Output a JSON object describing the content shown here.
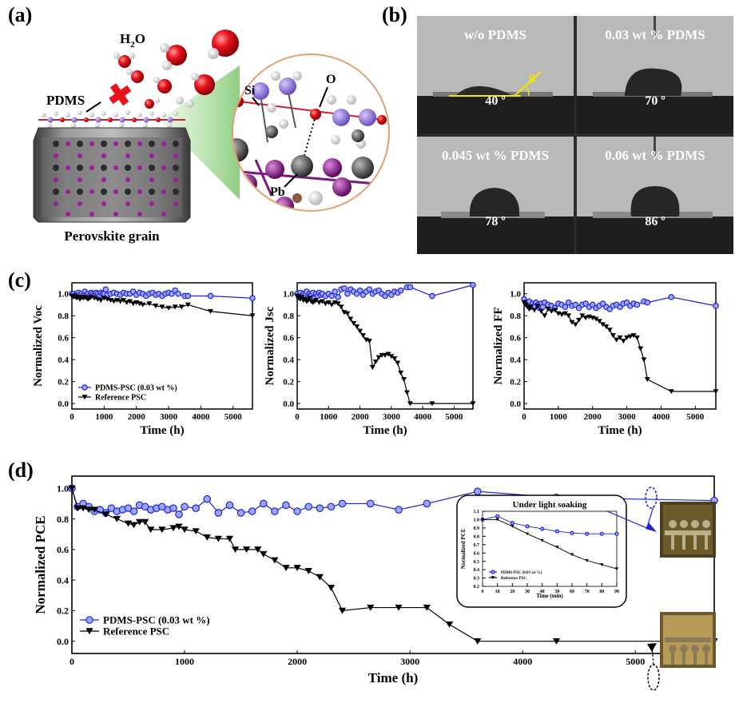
{
  "panel_labels": {
    "a": "(a)",
    "b": "(b)",
    "c": "(c)",
    "d": "(d)"
  },
  "panel_a": {
    "water_label": "H",
    "water_sub": "2",
    "water_suffix": "O",
    "pdms_label": "PDMS",
    "grain_label": "Perovskite grain",
    "si_label": "Si",
    "o_label": "O",
    "pb_label": "Pb",
    "colors": {
      "water_red": "#e8141c",
      "pdms_purple": "#9a7fd8",
      "pb_purple": "#8a1f8a",
      "grey_atom": "#5a5a5a",
      "cross_red": "#e8141c"
    }
  },
  "panel_b": {
    "cells": [
      {
        "label": "w/o PDMS",
        "angle": "40 º",
        "theta": "θ"
      },
      {
        "label": "0.03 wt % PDMS",
        "angle": "70 º"
      },
      {
        "label": "0.045 wt % PDMS",
        "angle": "78 º"
      },
      {
        "label": "0.06 wt % PDMS",
        "angle": "86 º"
      }
    ]
  },
  "chart_data": [
    {
      "id": "c-voc",
      "type": "line",
      "ylabel": "Normalized Voc",
      "xlabel": "Time (h)",
      "xlim": [
        0,
        5600
      ],
      "ylim": [
        -0.05,
        1.1
      ],
      "xticks": [
        0,
        1000,
        2000,
        3000,
        4000,
        5000
      ],
      "yticks": [
        0.0,
        0.2,
        0.4,
        0.6,
        0.8,
        1.0
      ],
      "xticklabels": [
        "0",
        "1000",
        "2000",
        "3000",
        "4000",
        "5000"
      ],
      "yticklabels": [
        "0.0",
        "0.2",
        "0.4",
        "0.6",
        "0.8",
        "1.0"
      ],
      "legend": {
        "placement": "bottom-left",
        "entries": [
          "PDMS-PSC (0.03 wt %)",
          "Reference PSC"
        ]
      },
      "series": [
        {
          "name": "PDMS-PSC (0.03 wt %)",
          "color": "#1f1fe0",
          "marker": "circle",
          "x": [
            0,
            50,
            100,
            150,
            200,
            250,
            300,
            350,
            400,
            450,
            500,
            550,
            600,
            650,
            700,
            750,
            800,
            850,
            900,
            950,
            1000,
            1050,
            1100,
            1200,
            1300,
            1400,
            1500,
            1600,
            1700,
            1800,
            1900,
            2000,
            2100,
            2200,
            2300,
            2400,
            2500,
            2600,
            2700,
            2800,
            2900,
            3000,
            3100,
            3200,
            3300,
            3500,
            3600,
            4300,
            5600
          ],
          "y": [
            1.0,
            1.0,
            0.98,
            1.0,
            1.01,
            0.99,
            1.0,
            0.98,
            1.02,
            0.99,
            1.0,
            0.98,
            1.01,
            1.0,
            0.99,
            1.01,
            1.0,
            0.98,
            1.01,
            1.0,
            1.0,
            1.04,
            0.99,
            1.0,
            1.01,
            1.0,
            0.99,
            1.01,
            1.0,
            1.0,
            1.02,
            0.99,
            1.01,
            1.0,
            0.98,
            1.0,
            1.01,
            0.99,
            1.0,
            0.98,
            1.0,
            1.01,
            1.0,
            1.03,
            1.0,
            0.98,
            0.98,
            0.98,
            0.96
          ]
        },
        {
          "name": "Reference PSC",
          "color": "#000000",
          "marker": "triangle-down",
          "x": [
            0,
            50,
            100,
            150,
            200,
            250,
            300,
            350,
            400,
            450,
            500,
            550,
            600,
            700,
            800,
            900,
            1000,
            1100,
            1200,
            1300,
            1400,
            1500,
            1600,
            1700,
            1800,
            1900,
            2000,
            2100,
            2200,
            2400,
            2600,
            2800,
            3000,
            3200,
            3400,
            3600,
            4300,
            5600
          ],
          "y": [
            0.98,
            0.97,
            0.98,
            0.96,
            0.97,
            0.95,
            0.97,
            0.96,
            0.97,
            0.96,
            0.95,
            0.96,
            0.97,
            0.96,
            0.95,
            0.94,
            0.96,
            0.95,
            0.94,
            0.93,
            0.94,
            0.93,
            0.94,
            0.92,
            0.93,
            0.91,
            0.92,
            0.91,
            0.9,
            0.91,
            0.89,
            0.88,
            0.87,
            0.88,
            0.88,
            0.9,
            0.84,
            0.8
          ]
        }
      ]
    },
    {
      "id": "c-jsc",
      "type": "line",
      "ylabel": "Normalized Jsc",
      "xlabel": "Time (h)",
      "xlim": [
        0,
        5600
      ],
      "ylim": [
        -0.05,
        1.1
      ],
      "xticks": [
        0,
        1000,
        2000,
        3000,
        4000,
        5000
      ],
      "yticks": [
        0.0,
        0.2,
        0.4,
        0.6,
        0.8,
        1.0
      ],
      "xticklabels": [
        "0",
        "1000",
        "2000",
        "3000",
        "4000",
        "5000"
      ],
      "yticklabels": [
        "0.0",
        "0.2",
        "0.4",
        "0.6",
        "0.8",
        "1.0"
      ],
      "series": [
        {
          "name": "PDMS-PSC (0.03 wt %)",
          "color": "#1f1fe0",
          "marker": "circle",
          "x": [
            0,
            50,
            100,
            150,
            200,
            250,
            300,
            350,
            400,
            450,
            500,
            550,
            600,
            650,
            700,
            750,
            800,
            900,
            1000,
            1100,
            1200,
            1300,
            1400,
            1500,
            1600,
            1700,
            1800,
            1900,
            2000,
            2100,
            2200,
            2300,
            2400,
            2500,
            2600,
            2700,
            2800,
            2900,
            3000,
            3100,
            3200,
            3300,
            3500,
            3600,
            4300,
            5600
          ],
          "y": [
            1.0,
            0.97,
            1.01,
            0.98,
            1.0,
            0.99,
            1.02,
            0.97,
            1.0,
            0.99,
            1.01,
            0.96,
            1.0,
            0.98,
            1.01,
            0.99,
            1.0,
            0.98,
            1.0,
            0.98,
            1.02,
            0.97,
            1.04,
            1.05,
            1.0,
            1.04,
            1.02,
            1.0,
            1.03,
            0.99,
            1.02,
            1.04,
            1.0,
            1.02,
            1.03,
            1.0,
            0.98,
            1.01,
            0.99,
            1.02,
            1.01,
            1.03,
            1.06,
            1.06,
            0.98,
            1.08
          ]
        },
        {
          "name": "Reference PSC",
          "color": "#000000",
          "marker": "triangle-down",
          "x": [
            0,
            50,
            100,
            150,
            200,
            250,
            300,
            350,
            400,
            450,
            500,
            550,
            600,
            700,
            800,
            900,
            1000,
            1100,
            1200,
            1300,
            1400,
            1500,
            1600,
            1700,
            1800,
            1900,
            2000,
            2100,
            2200,
            2300,
            2400,
            2500,
            2600,
            2700,
            2800,
            2900,
            3000,
            3100,
            3200,
            3300,
            3400,
            3500,
            3600,
            4300,
            5600
          ],
          "y": [
            0.98,
            0.96,
            0.95,
            0.97,
            0.94,
            0.95,
            0.93,
            0.94,
            0.96,
            0.93,
            0.92,
            0.93,
            0.94,
            0.92,
            0.93,
            0.91,
            0.92,
            0.9,
            0.92,
            0.91,
            0.88,
            0.83,
            0.82,
            0.77,
            0.73,
            0.7,
            0.66,
            0.62,
            0.58,
            0.57,
            0.33,
            0.38,
            0.42,
            0.44,
            0.44,
            0.45,
            0.43,
            0.41,
            0.37,
            0.28,
            0.22,
            0.1,
            0.0,
            0.0,
            0.0
          ]
        }
      ]
    },
    {
      "id": "c-ff",
      "type": "line",
      "ylabel": "Normalized FF",
      "xlabel": "Time (h)",
      "xlim": [
        0,
        5600
      ],
      "ylim": [
        -0.05,
        1.1
      ],
      "xticks": [
        0,
        1000,
        2000,
        3000,
        4000,
        5000
      ],
      "yticks": [
        0.0,
        0.2,
        0.4,
        0.6,
        0.8,
        1.0
      ],
      "xticklabels": [
        "0",
        "1000",
        "2000",
        "3000",
        "4000",
        "5000"
      ],
      "yticklabels": [
        "0.0",
        "0.2",
        "0.4",
        "0.6",
        "0.8",
        "1.0"
      ],
      "series": [
        {
          "name": "PDMS-PSC (0.03 wt %)",
          "color": "#1f1fe0",
          "marker": "circle",
          "x": [
            0,
            50,
            100,
            150,
            200,
            250,
            300,
            350,
            400,
            450,
            500,
            550,
            600,
            700,
            800,
            900,
            1000,
            1100,
            1200,
            1300,
            1400,
            1500,
            1600,
            1700,
            1800,
            1900,
            2000,
            2100,
            2200,
            2300,
            2400,
            2500,
            2600,
            2700,
            2800,
            2900,
            3000,
            3100,
            3200,
            3300,
            3500,
            3600,
            4300,
            5600
          ],
          "y": [
            0.95,
            0.92,
            0.9,
            0.93,
            0.88,
            0.91,
            0.89,
            0.92,
            0.9,
            0.87,
            0.91,
            0.88,
            0.92,
            0.9,
            0.89,
            0.87,
            0.91,
            0.9,
            0.88,
            0.92,
            0.89,
            0.9,
            0.87,
            0.9,
            0.91,
            0.88,
            0.9,
            0.87,
            0.89,
            0.91,
            0.88,
            0.86,
            0.89,
            0.9,
            0.88,
            0.91,
            0.92,
            0.89,
            0.91,
            0.9,
            0.93,
            0.92,
            0.97,
            0.89
          ]
        },
        {
          "name": "Reference PSC",
          "color": "#000000",
          "marker": "triangle-down",
          "x": [
            0,
            50,
            100,
            150,
            200,
            300,
            400,
            500,
            600,
            700,
            800,
            900,
            1000,
            1100,
            1200,
            1300,
            1400,
            1500,
            1600,
            1700,
            1800,
            1900,
            2000,
            2100,
            2200,
            2300,
            2400,
            2500,
            2600,
            2700,
            2800,
            2900,
            3000,
            3100,
            3200,
            3300,
            3400,
            3500,
            3600,
            4300,
            5600
          ],
          "y": [
            0.92,
            0.9,
            0.88,
            0.86,
            0.88,
            0.85,
            0.89,
            0.84,
            0.8,
            0.86,
            0.84,
            0.85,
            0.82,
            0.81,
            0.82,
            0.8,
            0.74,
            0.72,
            0.76,
            0.8,
            0.78,
            0.79,
            0.78,
            0.77,
            0.75,
            0.72,
            0.7,
            0.67,
            0.62,
            0.58,
            0.6,
            0.57,
            0.6,
            0.61,
            0.62,
            0.6,
            0.5,
            0.4,
            0.22,
            0.11,
            0.11
          ]
        }
      ]
    },
    {
      "id": "d-pce",
      "type": "line",
      "ylabel": "Normalized PCE",
      "xlabel": "Time (h)",
      "xlim": [
        0,
        5700
      ],
      "ylim": [
        -0.08,
        1.08
      ],
      "xticks": [
        0,
        1000,
        2000,
        3000,
        4000,
        5000
      ],
      "yticks": [
        0.0,
        0.2,
        0.4,
        0.6,
        0.8,
        1.0
      ],
      "xticklabels": [
        "0",
        "1000",
        "2000",
        "3000",
        "4000",
        "5000"
      ],
      "yticklabels": [
        "0.0",
        "0.2",
        "0.4",
        "0.6",
        "0.8",
        "1.0"
      ],
      "legend": {
        "placement": "bottom-left",
        "entries": [
          "PDMS-PSC (0.03 wt %)",
          "Reference PSC"
        ]
      },
      "series": [
        {
          "name": "PDMS-PSC (0.03 wt %)",
          "color": "#1f1fe0",
          "marker": "circle",
          "x": [
            0,
            50,
            100,
            150,
            200,
            250,
            300,
            350,
            400,
            450,
            500,
            550,
            600,
            650,
            700,
            750,
            800,
            850,
            900,
            950,
            1000,
            1100,
            1200,
            1300,
            1400,
            1500,
            1600,
            1700,
            1800,
            1900,
            2000,
            2100,
            2200,
            2300,
            2400,
            2650,
            2900,
            3150,
            3600,
            4300,
            5700
          ],
          "y": [
            1.0,
            0.88,
            0.9,
            0.88,
            0.85,
            0.86,
            0.84,
            0.87,
            0.85,
            0.86,
            0.87,
            0.85,
            0.89,
            0.88,
            0.86,
            0.87,
            0.88,
            0.86,
            0.87,
            0.83,
            0.88,
            0.87,
            0.93,
            0.84,
            0.89,
            0.84,
            0.85,
            0.9,
            0.85,
            0.89,
            0.85,
            0.88,
            0.87,
            0.88,
            0.9,
            0.9,
            0.86,
            0.9,
            0.98,
            0.94,
            0.92
          ]
        },
        {
          "name": "Reference PSC",
          "color": "#000000",
          "marker": "triangle-down",
          "x": [
            0,
            50,
            100,
            150,
            200,
            300,
            400,
            500,
            550,
            600,
            650,
            700,
            800,
            900,
            950,
            1000,
            1100,
            1200,
            1300,
            1400,
            1450,
            1550,
            1650,
            1700,
            1800,
            1900,
            2000,
            2100,
            2200,
            2300,
            2400,
            2650,
            2900,
            3150,
            3350,
            3600,
            4300,
            5700
          ],
          "y": [
            1.0,
            0.87,
            0.87,
            0.86,
            0.86,
            0.83,
            0.8,
            0.77,
            0.76,
            0.78,
            0.78,
            0.73,
            0.73,
            0.74,
            0.75,
            0.73,
            0.72,
            0.68,
            0.67,
            0.67,
            0.6,
            0.6,
            0.6,
            0.57,
            0.53,
            0.48,
            0.48,
            0.46,
            0.42,
            0.35,
            0.2,
            0.22,
            0.22,
            0.22,
            0.11,
            0.0,
            0.0,
            0.0
          ]
        }
      ]
    },
    {
      "id": "d-inset",
      "type": "line",
      "title": "Under light soaking",
      "ylabel": "Normalized PCE",
      "xlabel": "Time (min)",
      "xlim": [
        0,
        90
      ],
      "ylim": [
        0.2,
        1.1
      ],
      "xticks": [
        0,
        10,
        20,
        30,
        40,
        50,
        60,
        70,
        80,
        90
      ],
      "yticks": [
        0.2,
        0.3,
        0.4,
        0.5,
        0.6,
        0.7,
        0.8,
        0.9,
        1.0,
        1.1
      ],
      "xticklabels": [
        "0",
        "10",
        "20",
        "30",
        "40",
        "50",
        "60",
        "70",
        "80",
        "90"
      ],
      "yticklabels": [
        "0.2",
        "0.3",
        "0.4",
        "0.5",
        "0.6",
        "0.7",
        "0.8",
        "0.9",
        "1.0",
        "1.1"
      ],
      "legend": {
        "placement": "bottom-left",
        "entries": [
          "PDMS-PSC (0.03 wt %)",
          "Reference PSC"
        ]
      },
      "series": [
        {
          "name": "PDMS-PSC (0.03 wt %)",
          "color": "#1f1fe0",
          "marker": "circle",
          "x": [
            0,
            10,
            20,
            30,
            40,
            50,
            60,
            70,
            80,
            90
          ],
          "y": [
            1.0,
            1.04,
            0.96,
            0.92,
            0.89,
            0.86,
            0.84,
            0.83,
            0.83,
            0.83
          ]
        },
        {
          "name": "Reference PSC",
          "color": "#000000",
          "marker": "triangle-down",
          "x": [
            0,
            10,
            20,
            30,
            40,
            50,
            60,
            70,
            80,
            90
          ],
          "y": [
            1.0,
            1.0,
            0.92,
            0.83,
            0.75,
            0.67,
            0.58,
            0.51,
            0.46,
            0.41
          ]
        }
      ]
    }
  ]
}
